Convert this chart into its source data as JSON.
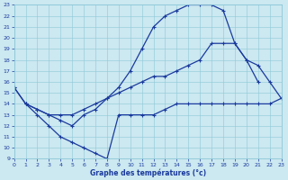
{
  "xlabel": "Graphe des températures (°c)",
  "bg_color": "#cce8f0",
  "line_color": "#1a3a9e",
  "x_min": 0,
  "x_max": 23,
  "y_min": 9,
  "y_max": 23,
  "line1_x": [
    0,
    1,
    2,
    3,
    4,
    5,
    6,
    7,
    8,
    9,
    10,
    11,
    12,
    13,
    14,
    15,
    16,
    17,
    18,
    19,
    20,
    21,
    22
  ],
  "line1_y": [
    15.5,
    14.0,
    13.5,
    13.0,
    12.5,
    12.0,
    13.0,
    13.5,
    14.5,
    15.5,
    17.0,
    19.0,
    21.0,
    22.0,
    22.5,
    23.0,
    23.0,
    23.0,
    22.5,
    19.5,
    18.0,
    16.0,
    null
  ],
  "line2_x": [
    0,
    1,
    2,
    3,
    4,
    5,
    6,
    7,
    8,
    9,
    10,
    11,
    12,
    13,
    14,
    15,
    16,
    17,
    18,
    19,
    20,
    21,
    22,
    23
  ],
  "line2_y": [
    15.5,
    14.0,
    13.5,
    13.0,
    13.0,
    13.0,
    13.5,
    14.0,
    14.5,
    15.0,
    15.5,
    16.0,
    16.5,
    16.5,
    17.0,
    17.5,
    18.0,
    19.5,
    19.5,
    19.5,
    18.0,
    17.5,
    16.0,
    14.5
  ],
  "line3_x": [
    0,
    1,
    2,
    3,
    4,
    5,
    6,
    7,
    8,
    9,
    10,
    11,
    12,
    13,
    14,
    15,
    16,
    17,
    18,
    19,
    20,
    21,
    22,
    23
  ],
  "line3_y": [
    null,
    14.0,
    13.0,
    12.0,
    11.0,
    10.5,
    10.0,
    9.5,
    9.0,
    13.0,
    13.0,
    13.0,
    13.0,
    13.5,
    14.0,
    14.0,
    14.0,
    14.0,
    14.0,
    14.0,
    14.0,
    14.0,
    14.0,
    14.5
  ]
}
